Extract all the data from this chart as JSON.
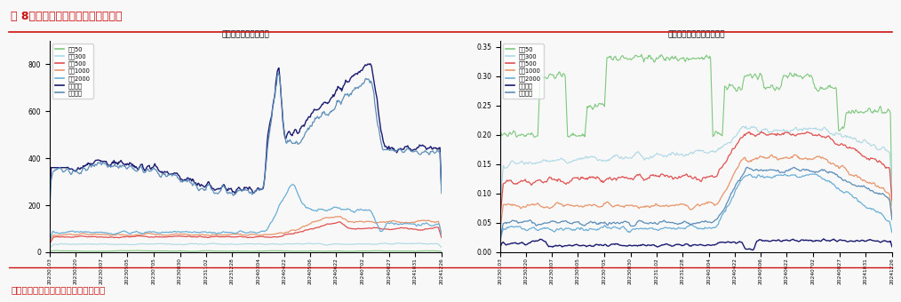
{
  "title_left": "各宽基指数破净个股数",
  "title_right": "各宽基指数破净个股数占比",
  "header_title": "图 8、各宽基指数破净个股数和占比",
  "footer_text": "数据来源：聚宽，江海证券研究发展部",
  "legend_labels": [
    "上证50",
    "沪深300",
    "中证500",
    "中证1000",
    "中证2000",
    "创业板指",
    "中证全指"
  ],
  "colors": [
    "#7EC87E",
    "#ADD8E6",
    "#E05050",
    "#E8956A",
    "#6AAED6",
    "#191970",
    "#5B8DB8"
  ],
  "x_ticks": [
    "20230103",
    "20230220",
    "20230307",
    "20230505",
    "20230705",
    "20230830",
    "20231102",
    "20231228",
    "20240304",
    "20240422",
    "20240506",
    "20240622",
    "20240702",
    "20240827",
    "20241031",
    "20241226"
  ],
  "ylim_left": [
    0,
    900
  ],
  "ylim_right": [
    0,
    0.36
  ],
  "yticks_left": [
    0,
    200,
    400,
    600,
    800
  ],
  "yticks_right": [
    0.0,
    0.05,
    0.1,
    0.15,
    0.2,
    0.25,
    0.3,
    0.35
  ],
  "background_color": "#f5f5f5",
  "n_points": 500
}
